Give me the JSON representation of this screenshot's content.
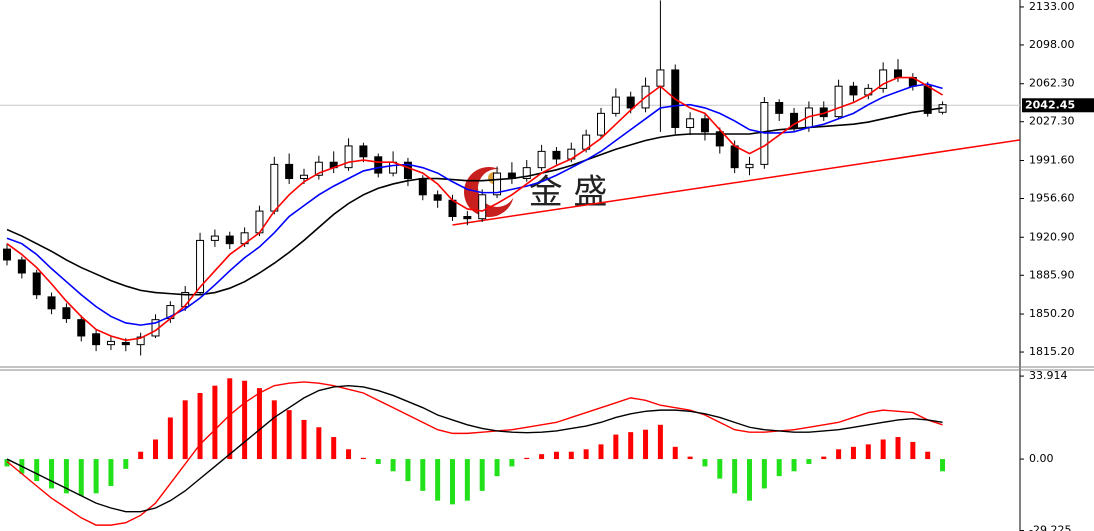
{
  "chart_data": [
    {
      "type": "candlestick",
      "ylim": [
        1800.5,
        2139.4
      ],
      "yticks": [
        {
          "value": 2133,
          "label": "2133.00"
        },
        {
          "value": 2098,
          "label": "2098.00"
        },
        {
          "value": 2062.3,
          "label": "2062.30"
        },
        {
          "value": 2027.3,
          "label": "2027.30"
        },
        {
          "value": 1991.6,
          "label": "1991.60"
        },
        {
          "value": 1956.6,
          "label": "1956.60"
        },
        {
          "value": 1920.9,
          "label": "1920.90"
        },
        {
          "value": 1885.9,
          "label": "1885.90"
        },
        {
          "value": 1850.2,
          "label": "1850.20"
        },
        {
          "value": 1815.2,
          "label": "1815.20"
        }
      ],
      "last": 2042.45,
      "watermark": "金 盛",
      "open": [
        1910,
        1900,
        1888,
        1866,
        1856,
        1845,
        1832,
        1822,
        1824,
        1822,
        1830,
        1846,
        1857,
        1870,
        1918,
        1922,
        1915,
        1925,
        1945,
        1988,
        1975,
        1978,
        1990,
        1985,
        2005,
        1995,
        1980,
        1990,
        1975,
        1960,
        1955,
        1940,
        1938,
        1960,
        1980,
        1975,
        1985,
        2000,
        1993,
        2002,
        2015,
        2035,
        2050,
        2040,
        2060,
        2075,
        2022,
        2030,
        2018,
        2005,
        1985,
        1988,
        2045,
        2035,
        2022,
        2040,
        2032,
        2060,
        2052,
        2058,
        2075,
        2068,
        2060,
        2036
      ],
      "high": [
        1915,
        1903,
        1891,
        1870,
        1860,
        1849,
        1836,
        1830,
        1828,
        1833,
        1850,
        1862,
        1876,
        1925,
        1928,
        1926,
        1930,
        1950,
        1995,
        1998,
        1984,
        1996,
        2000,
        2012,
        2008,
        1998,
        2000,
        1994,
        1978,
        1964,
        1960,
        1945,
        1965,
        1986,
        1990,
        1992,
        2006,
        2004,
        2008,
        2020,
        2040,
        2058,
        2055,
        2068,
        2139,
        2080,
        2036,
        2034,
        2022,
        2010,
        1995,
        2050,
        2048,
        2040,
        2046,
        2046,
        2066,
        2064,
        2062,
        2082,
        2085,
        2072,
        2064,
        2046
      ],
      "low": [
        1895,
        1883,
        1864,
        1850,
        1842,
        1825,
        1816,
        1817,
        1816,
        1812,
        1828,
        1842,
        1853,
        1868,
        1912,
        1910,
        1912,
        1922,
        1942,
        1970,
        1970,
        1974,
        1980,
        1982,
        1990,
        1976,
        1977,
        1968,
        1955,
        1948,
        1936,
        1932,
        1935,
        1957,
        1970,
        1972,
        1982,
        1988,
        1990,
        1999,
        2012,
        2032,
        2035,
        2036,
        2018,
        2016,
        2015,
        2010,
        1998,
        1980,
        1978,
        1984,
        2028,
        2018,
        2018,
        2028,
        2030,
        2046,
        2048,
        2054,
        2064,
        2056,
        2032,
        2034
      ],
      "close": [
        1900,
        1888,
        1868,
        1855,
        1846,
        1830,
        1822,
        1825,
        1822,
        1829,
        1845,
        1858,
        1870,
        1918,
        1922,
        1915,
        1925,
        1945,
        1988,
        1975,
        1978,
        1990,
        1985,
        2005,
        1995,
        1980,
        1990,
        1975,
        1960,
        1955,
        1940,
        1938,
        1960,
        1980,
        1975,
        1985,
        2000,
        1993,
        2002,
        2015,
        2035,
        2050,
        2040,
        2060,
        2075,
        2022,
        2030,
        2018,
        2005,
        1985,
        1988,
        2045,
        2035,
        2022,
        2040,
        2032,
        2060,
        2052,
        2058,
        2075,
        2068,
        2060,
        2035,
        2043
      ],
      "lines": [
        {
          "color": "#000000",
          "values": [
            1928,
            1922,
            1915,
            1908,
            1900,
            1893,
            1887,
            1881,
            1876,
            1872,
            1870,
            1869,
            1868,
            1868,
            1870,
            1874,
            1880,
            1888,
            1897,
            1907,
            1918,
            1930,
            1942,
            1952,
            1960,
            1966,
            1970,
            1973,
            1975,
            1975,
            1974,
            1973,
            1973,
            1974,
            1975,
            1977,
            1980,
            1983,
            1987,
            1992,
            1997,
            2002,
            2006,
            2010,
            2013,
            2015,
            2016,
            2016,
            2016,
            2016,
            2016,
            2018,
            2020,
            2021,
            2022,
            2023,
            2024,
            2025,
            2027,
            2030,
            2033,
            2036,
            2038,
            2040
          ]
        },
        {
          "color": "#0000ff",
          "values": [
            1920,
            1915,
            1905,
            1892,
            1880,
            1868,
            1857,
            1848,
            1842,
            1840,
            1842,
            1848,
            1855,
            1865,
            1877,
            1890,
            1902,
            1912,
            1925,
            1940,
            1950,
            1960,
            1968,
            1975,
            1982,
            1985,
            1987,
            1988,
            1985,
            1980,
            1972,
            1965,
            1962,
            1962,
            1965,
            1968,
            1972,
            1978,
            1985,
            1992,
            2000,
            2010,
            2020,
            2030,
            2040,
            2042,
            2043,
            2040,
            2035,
            2028,
            2020,
            2017,
            2017,
            2018,
            2022,
            2025,
            2030,
            2035,
            2043,
            2050,
            2055,
            2060,
            2062,
            2058
          ]
        },
        {
          "color": "#ff0000",
          "values": [
            1915,
            1905,
            1893,
            1878,
            1862,
            1848,
            1836,
            1830,
            1826,
            1828,
            1835,
            1846,
            1858,
            1875,
            1890,
            1905,
            1915,
            1925,
            1945,
            1960,
            1972,
            1980,
            1985,
            1990,
            1992,
            1990,
            1990,
            1985,
            1980,
            1970,
            1955,
            1947,
            1945,
            1952,
            1960,
            1970,
            1980,
            1987,
            1993,
            2002,
            2012,
            2025,
            2038,
            2050,
            2060,
            2048,
            2040,
            2035,
            2020,
            2005,
            1998,
            2005,
            2015,
            2025,
            2032,
            2035,
            2040,
            2045,
            2052,
            2062,
            2068,
            2068,
            2060,
            2052
          ]
        }
      ],
      "trendline": {
        "color": "#ff0000",
        "x": [
          30,
          68.2
        ],
        "values": [
          1932.2,
          2010.5
        ]
      }
    },
    {
      "type": "macd",
      "ylim": [
        -29.4,
        36.4
      ],
      "yticks": [
        {
          "value": 33.914,
          "label": "33.914"
        },
        {
          "value": 0,
          "label": "0.00"
        },
        {
          "value": -29.225,
          "label": "-29.225"
        }
      ],
      "up_color": "#ff0000",
      "down_color": "#22e01a",
      "histogram": [
        -3,
        -6,
        -9,
        -12,
        -14,
        -15,
        -14,
        -11,
        -4,
        3,
        8,
        17,
        24,
        27,
        30,
        33,
        32,
        29,
        24,
        20,
        16,
        13,
        9,
        4,
        0.5,
        -2,
        -5,
        -9,
        -13,
        -17,
        -18.5,
        -17,
        -13,
        -7,
        -3,
        0.5,
        2,
        3,
        3,
        4,
        6,
        10,
        11,
        12,
        14,
        5,
        1,
        -3,
        -8,
        -14,
        -17,
        -12,
        -7,
        -5,
        -2,
        1,
        4,
        5,
        6,
        8,
        9,
        7,
        3,
        -5
      ],
      "lines": [
        {
          "color": "#ff0000",
          "values": [
            -1,
            -6,
            -11,
            -16,
            -20,
            -24,
            -27,
            -27,
            -26,
            -23,
            -18,
            -10,
            -2,
            6,
            12,
            18,
            23,
            27,
            30,
            31,
            31.5,
            31,
            30,
            28.5,
            27,
            24,
            21,
            18,
            15,
            12,
            10.5,
            10.5,
            11,
            11.5,
            12,
            13,
            14,
            15,
            17,
            19,
            21,
            23,
            25,
            24,
            22,
            21,
            20,
            18,
            15,
            12,
            11,
            11,
            11.5,
            12,
            13,
            14,
            15,
            17,
            19,
            20,
            19.5,
            19,
            16,
            14
          ]
        },
        {
          "color": "#000000",
          "values": [
            0,
            -3,
            -6,
            -9,
            -12,
            -15,
            -18,
            -20,
            -21.5,
            -21.5,
            -20,
            -17,
            -13,
            -8,
            -3,
            2,
            7,
            12,
            17,
            21,
            25,
            28,
            29.5,
            30,
            29.5,
            28,
            26,
            23.5,
            21,
            18,
            16,
            14,
            12.5,
            11.5,
            11,
            10.8,
            11,
            11.5,
            12.5,
            13.5,
            15,
            17,
            18.5,
            19.5,
            20,
            20,
            19.5,
            18.5,
            17,
            15,
            13,
            12,
            11.5,
            11,
            11,
            11.5,
            12,
            13,
            14,
            15,
            16,
            16.5,
            16,
            15
          ]
        }
      ]
    }
  ]
}
